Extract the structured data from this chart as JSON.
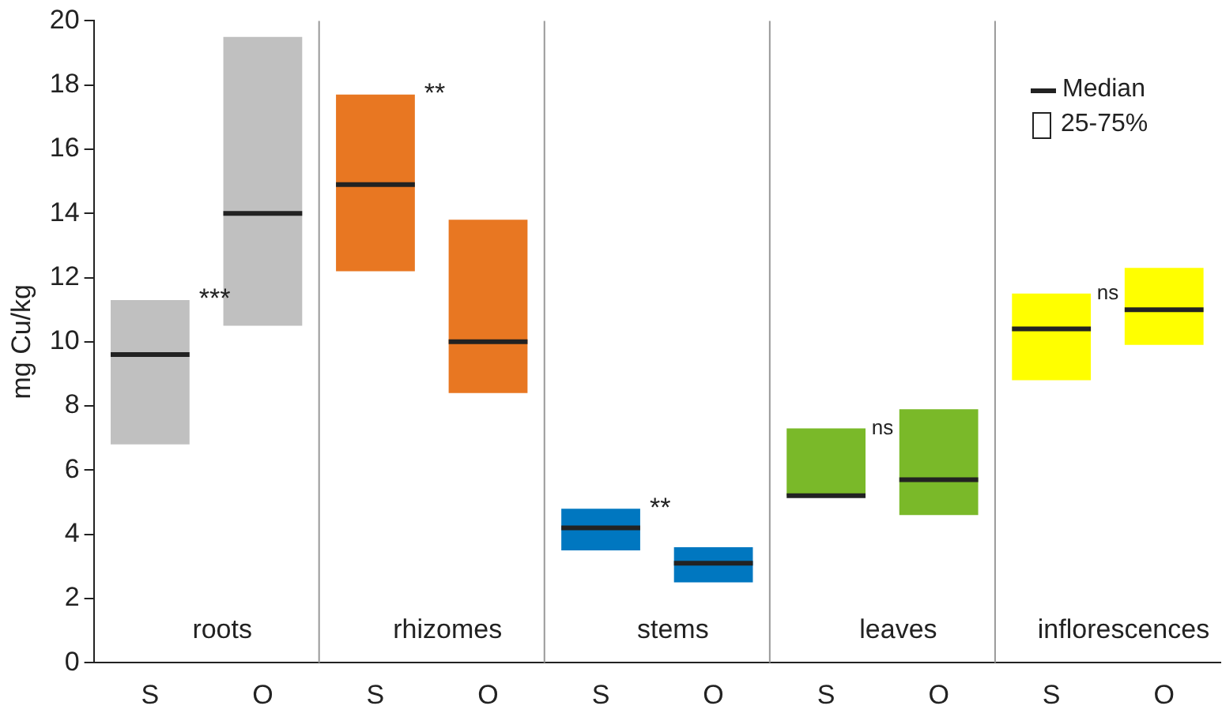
{
  "chart_data": {
    "type": "box",
    "ylabel": "mg Cu/kg",
    "categories": [
      "S",
      "O",
      "S",
      "O",
      "S",
      "O",
      "S",
      "O",
      "S",
      "O"
    ],
    "colors": [
      "#c0c0c0",
      "#c0c0c0",
      "#e87722",
      "#e87722",
      "#0077c0",
      "#0077c0",
      "#7ab929",
      "#7ab929",
      "#ffff00",
      "#ffff00"
    ],
    "boxes": [
      {
        "low": 6.8,
        "q1": 6.8,
        "median": 9.6,
        "q3": 11.3,
        "high": 11.3
      },
      {
        "low": 10.5,
        "q1": 10.5,
        "median": 14.0,
        "q3": 19.5,
        "high": 19.5
      },
      {
        "low": 12.2,
        "q1": 12.2,
        "median": 14.9,
        "q3": 17.7,
        "high": 17.7
      },
      {
        "low": 8.4,
        "q1": 8.4,
        "median": 10.0,
        "q3": 13.8,
        "high": 13.8
      },
      {
        "low": 3.5,
        "q1": 3.5,
        "median": 4.2,
        "q3": 4.8,
        "high": 4.8
      },
      {
        "low": 2.5,
        "q1": 2.5,
        "median": 3.1,
        "q3": 3.6,
        "high": 3.6
      },
      {
        "low": 5.2,
        "q1": 5.2,
        "median": 5.2,
        "q3": 7.3,
        "high": 7.3
      },
      {
        "low": 4.6,
        "q1": 4.6,
        "median": 5.7,
        "q3": 7.9,
        "high": 7.9
      },
      {
        "low": 8.8,
        "q1": 8.8,
        "median": 10.4,
        "q3": 11.5,
        "high": 11.5
      },
      {
        "low": 9.9,
        "q1": 9.9,
        "median": 11.0,
        "q3": 12.3,
        "high": 12.3
      }
    ],
    "ylim": [
      0,
      20
    ],
    "yticks": [
      0,
      2,
      4,
      6,
      8,
      10,
      12,
      14,
      16,
      18,
      20
    ],
    "annotations": [
      "roots",
      "rhizomes",
      "stems",
      "leaves",
      "inflorescences",
      "***",
      "**",
      "**",
      "ns",
      "ns",
      "Median",
      "25-75%"
    ],
    "grid": false
  }
}
